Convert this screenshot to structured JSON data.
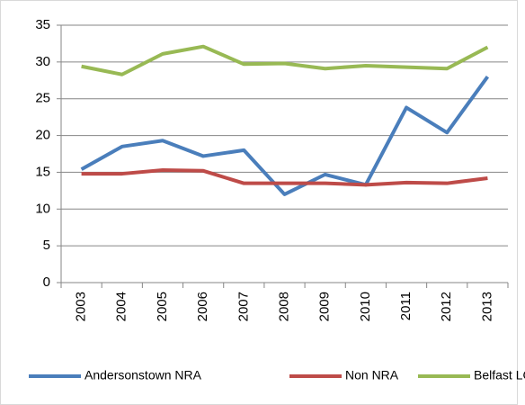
{
  "chart_data": {
    "type": "line",
    "categories": [
      "2003",
      "2004",
      "2005",
      "2006",
      "2007",
      "2008",
      "2009",
      "2010",
      "2011",
      "2012",
      "2013"
    ],
    "series": [
      {
        "name": "Andersonstown NRA",
        "color": "#4a7ebb",
        "values": [
          15.4,
          18.5,
          19.3,
          17.2,
          18.0,
          12.0,
          14.7,
          13.3,
          23.8,
          20.4,
          28.0
        ]
      },
      {
        "name": "Non NRA",
        "color": "#be4b48",
        "values": [
          14.8,
          14.8,
          15.3,
          15.2,
          13.5,
          13.5,
          13.5,
          13.3,
          13.6,
          13.5,
          14.2
        ]
      },
      {
        "name": "Belfast LGD",
        "color": "#98b954",
        "values": [
          29.4,
          28.3,
          31.1,
          32.1,
          29.7,
          29.8,
          29.1,
          29.5,
          29.3,
          29.1,
          32.0
        ]
      }
    ],
    "ylim": [
      0,
      35
    ],
    "yticks": [
      0,
      5,
      10,
      15,
      20,
      25,
      30,
      35
    ],
    "grid": true,
    "legend": "bottom"
  }
}
